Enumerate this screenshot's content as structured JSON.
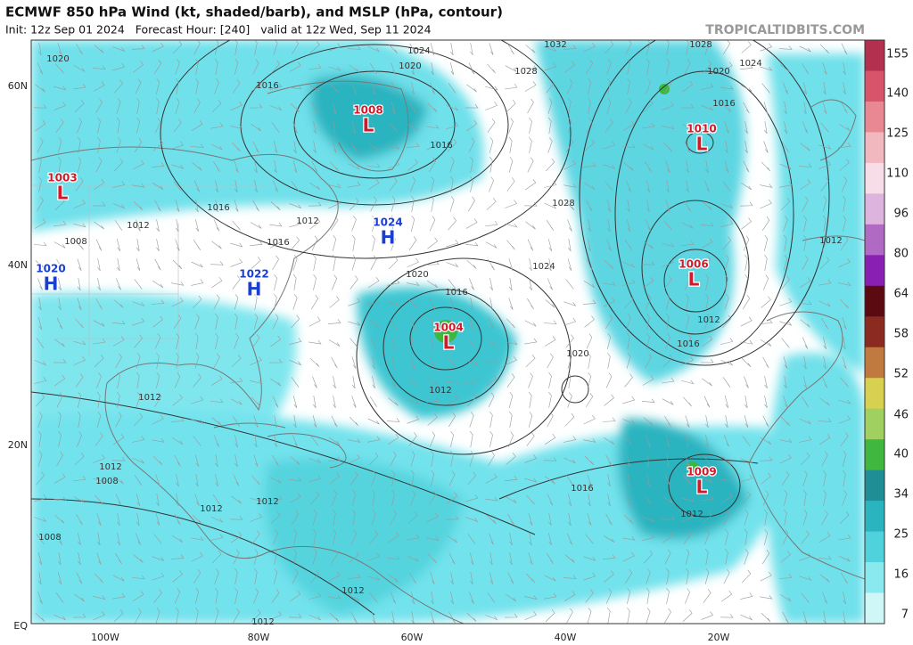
{
  "header": {
    "title": "ECMWF 850 hPa Wind (kt, shaded/barb), and MSLP (hPa, contour)",
    "subtitle": "Init: 12z Sep 01 2024   Forecast Hour: [240]   valid at 12z Wed, Sep 11 2024",
    "watermark": "TROPICALTIDBITS.COM"
  },
  "axes": {
    "lat_labels": [
      "60N",
      "40N",
      "20N",
      "EQ"
    ],
    "lon_labels": [
      "100W",
      "80W",
      "60W",
      "40W",
      "20W"
    ]
  },
  "pressure_centers": [
    {
      "value": 1008,
      "letter": "L"
    },
    {
      "value": 1003,
      "letter": "L"
    },
    {
      "value": 1024,
      "letter": "H"
    },
    {
      "value": 1020,
      "letter": "H"
    },
    {
      "value": 1022,
      "letter": "H"
    },
    {
      "value": 1004,
      "letter": "L"
    },
    {
      "value": 1010,
      "letter": "L"
    },
    {
      "value": 1006,
      "letter": "L"
    },
    {
      "value": 1009,
      "letter": "L"
    }
  ],
  "contour_labels": [
    1032,
    1024,
    1020,
    1028,
    1016,
    1016,
    1020,
    1016,
    1012,
    1008,
    1012,
    1016,
    1020,
    1028,
    1024,
    1028,
    1024,
    1020,
    1016,
    1012,
    1016,
    1020,
    1016,
    1012,
    1012,
    1012,
    1012,
    1008,
    1012,
    1008,
    1012,
    1012,
    1012,
    1016,
    1012
  ],
  "colorbar": {
    "labels": [
      155,
      140,
      125,
      110,
      96,
      80,
      64,
      58,
      52,
      46,
      40,
      34,
      25,
      16,
      7
    ],
    "colors": [
      "#b3304f",
      "#d8546a",
      "#e98793",
      "#f2b8c0",
      "#f6dde8",
      "#dcb4de",
      "#b06ac4",
      "#8a1fb3",
      "#5a0a10",
      "#8b2a20",
      "#c07a40",
      "#d8d050",
      "#a0d060",
      "#40b840",
      "#1f8f95",
      "#2ab4c0",
      "#50d2dc",
      "#8ae9ef",
      "#d0f7f8"
    ]
  }
}
